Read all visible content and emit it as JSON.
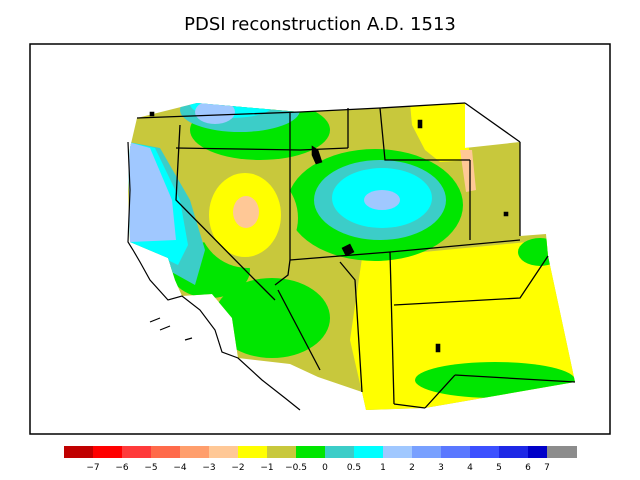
{
  "title": "PDSI reconstruction A.D. 1513",
  "colors": {
    "lt_neg7": "#c00000",
    "neg7_neg6": "#ff0000",
    "neg6_neg5": "#ff3a3a",
    "neg5_neg4": "#ff6a4a",
    "neg4_neg3": "#ff9e6c",
    "neg3_neg2": "#ffc896",
    "neg2_neg1": "#ffff00",
    "neg1_neg05": "#c8c83c",
    "neg05_0": "#00e600",
    "0_05": "#3ccdc8",
    "05_1": "#00ffff",
    "1_2": "#a0c8ff",
    "2_3": "#78a0ff",
    "3_4": "#5a78ff",
    "4_5": "#3c50ff",
    "5_6": "#1e28e6",
    "6_7": "#0000c8",
    "gt_7": "#8c8c8c"
  },
  "legend": {
    "labels": [
      "−7",
      "−6",
      "−5",
      "−4",
      "−3",
      "−2",
      "−1",
      "−0.5",
      "0",
      "0.5",
      "1",
      "2",
      "3",
      "4",
      "5",
      "6",
      "7"
    ]
  }
}
